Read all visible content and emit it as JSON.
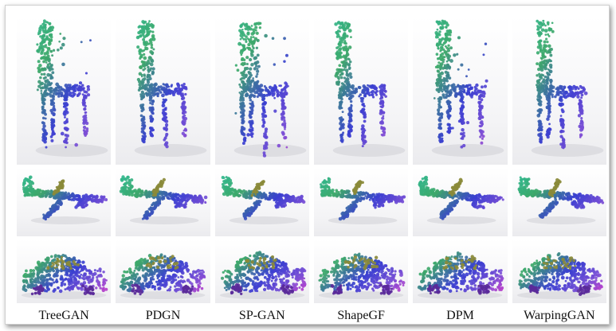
{
  "methods": [
    "TreeGAN",
    "PDGN",
    "SP-GAN",
    "ShapeGF",
    "DPM",
    "WarpingGAN"
  ],
  "rows": [
    "chair",
    "airplane",
    "car"
  ],
  "colors": {
    "teal": "#2bbfa0",
    "green": "#3ea86a",
    "blue": "#3a3fd0",
    "purple": "#7a4fd6",
    "magenta": "#c43cc8",
    "pink": "#e06aa8",
    "red": "#c8323c",
    "olive": "#8a8a3a"
  }
}
